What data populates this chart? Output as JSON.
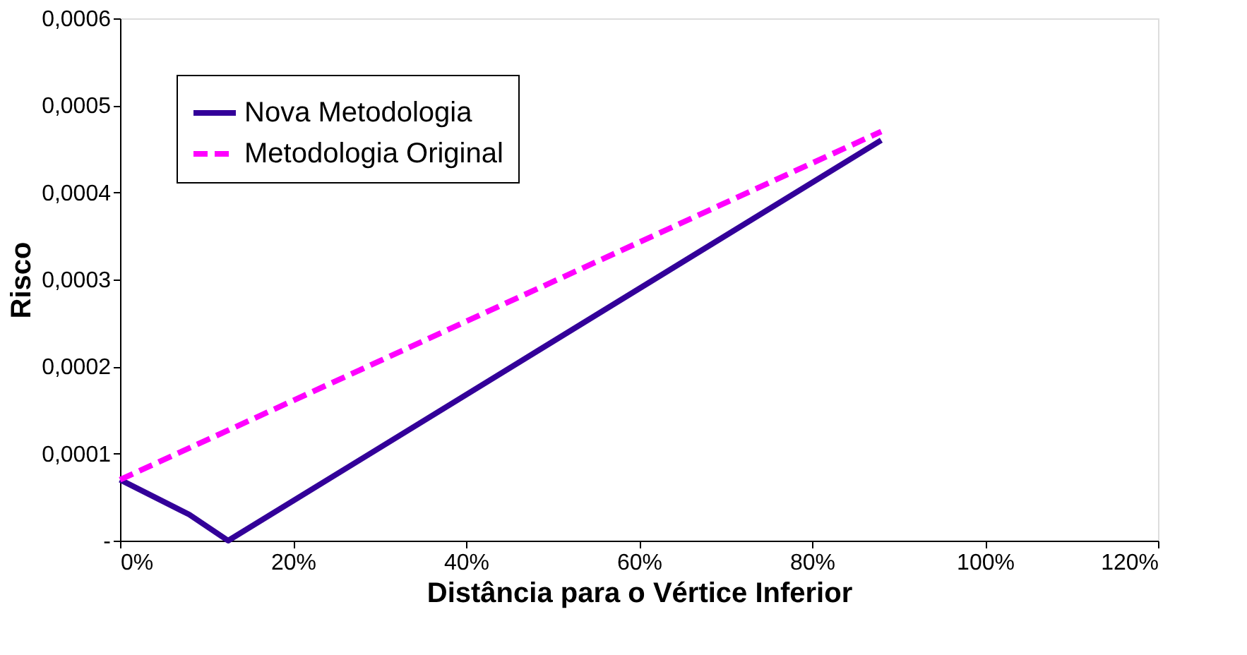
{
  "chart_data": {
    "type": "line",
    "xlabel": "Distância para o Vértice Inferior",
    "ylabel": "Risco",
    "xlim": [
      0,
      120
    ],
    "xticks": [
      {
        "value": 0,
        "label": "0%"
      },
      {
        "value": 20,
        "label": "20%"
      },
      {
        "value": 40,
        "label": "40%"
      },
      {
        "value": 60,
        "label": "60%"
      },
      {
        "value": 80,
        "label": "80%"
      },
      {
        "value": 100,
        "label": "100%"
      },
      {
        "value": 120,
        "label": "120%"
      }
    ],
    "ylim": [
      0,
      0.0006
    ],
    "yticks": [
      {
        "value": 0,
        "label": "-"
      },
      {
        "value": 0.0001,
        "label": "0,0001"
      },
      {
        "value": 0.0002,
        "label": "0,0002"
      },
      {
        "value": 0.0003,
        "label": "0,0003"
      },
      {
        "value": 0.0004,
        "label": "0,0004"
      },
      {
        "value": 0.0005,
        "label": "0,0005"
      },
      {
        "value": 0.0006,
        "label": "0,0006"
      }
    ],
    "grid": false,
    "legend": "top left",
    "marker": "none",
    "series": [
      {
        "name": "Nova Metodologia",
        "color": "#330099",
        "line_style": "solid",
        "x": [
          0,
          8,
          12.5,
          88
        ],
        "values": [
          7e-05,
          3e-05,
          0,
          0.00046
        ]
      },
      {
        "name": "Metodologia Original",
        "color": "#ff00ff",
        "line_style": "dashed",
        "x": [
          0,
          88
        ],
        "values": [
          7e-05,
          0.00047
        ]
      }
    ]
  }
}
